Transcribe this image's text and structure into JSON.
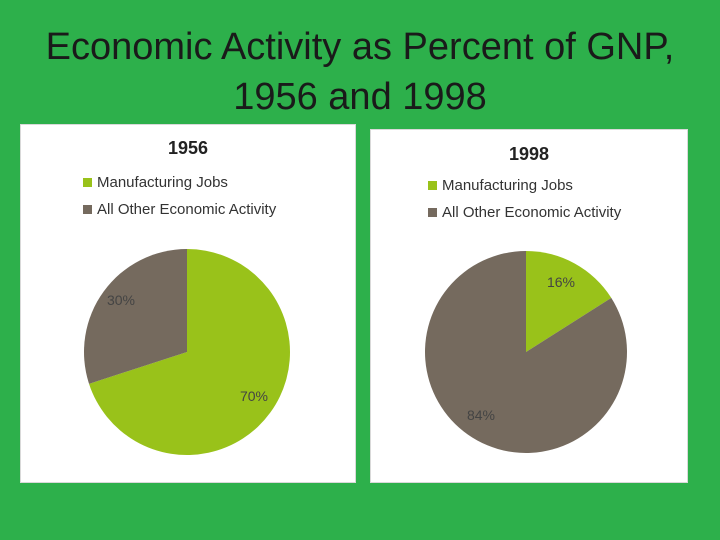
{
  "title": {
    "line1": "Economic Activity as Percent of GNP,",
    "line2": "1956 and 1998"
  },
  "colors": {
    "background": "#2db04b",
    "manufacturing": "#99c21a",
    "other": "#756a5e"
  },
  "chart_data": [
    {
      "type": "pie",
      "title": "1956",
      "categories": [
        "Manufacturing Jobs",
        "All Other Economic Activity"
      ],
      "values": [
        70,
        30
      ],
      "data_labels": [
        "70%",
        "30%"
      ],
      "legend": "top-left"
    },
    {
      "type": "pie",
      "title": "1998",
      "categories": [
        "Manufacturing Jobs",
        "All Other Economic Activity"
      ],
      "values": [
        16,
        84
      ],
      "data_labels": [
        "16%",
        "84%"
      ],
      "legend": "top-left"
    }
  ]
}
